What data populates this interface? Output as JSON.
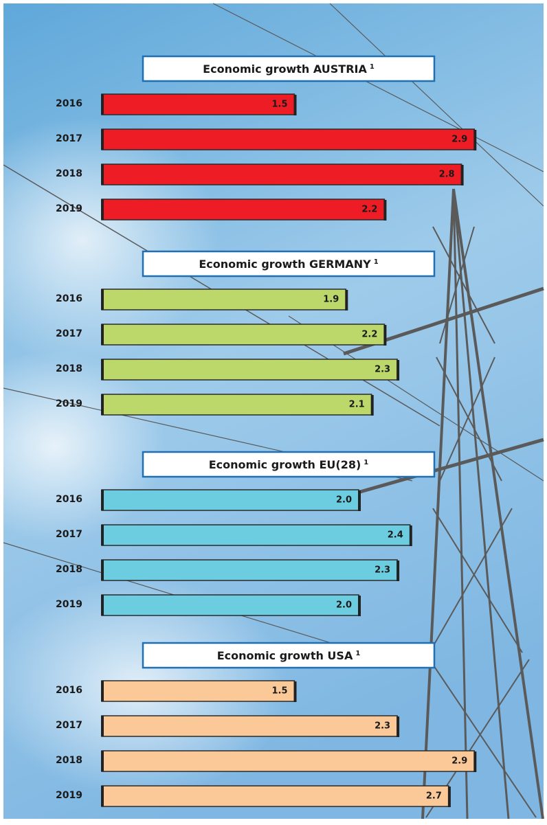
{
  "chart_data": [
    {
      "type": "bar",
      "title": "Economic growth AUSTRIA",
      "title_note": "1",
      "color": "#ee1c25",
      "categories": [
        "2016",
        "2017",
        "2018",
        "2019"
      ],
      "values": [
        1.5,
        2.9,
        2.8,
        2.2
      ],
      "value_labels": [
        "1.5",
        "2.9",
        "2.8",
        "2.2"
      ]
    },
    {
      "type": "bar",
      "title": "Economic growth GERMANY",
      "title_note": "1",
      "color": "#bcd86b",
      "categories": [
        "2016",
        "2017",
        "2018",
        "2019"
      ],
      "values": [
        1.9,
        2.2,
        2.3,
        2.1
      ],
      "value_labels": [
        "1.9",
        "2.2",
        "2.3",
        "2.1"
      ]
    },
    {
      "type": "bar",
      "title": "Economic growth EU(28)",
      "title_note": "1",
      "color": "#6dcde0",
      "categories": [
        "2016",
        "2017",
        "2018",
        "2019"
      ],
      "values": [
        2.0,
        2.4,
        2.3,
        2.0
      ],
      "value_labels": [
        "2.0",
        "2.4",
        "2.3",
        "2.0"
      ]
    },
    {
      "type": "bar",
      "title": "Economic growth USA",
      "title_note": "1",
      "color": "#fbc998",
      "categories": [
        "2016",
        "2017",
        "2018",
        "2019"
      ],
      "values": [
        1.5,
        2.3,
        2.9,
        2.7
      ],
      "value_labels": [
        "1.5",
        "2.3",
        "2.9",
        "2.7"
      ]
    }
  ]
}
